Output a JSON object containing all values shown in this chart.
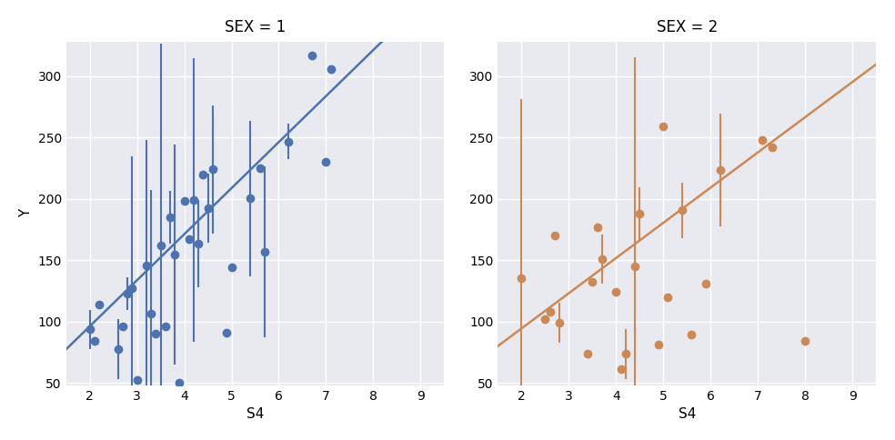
{
  "sex1": {
    "color": "#4C72B0",
    "title": "SEX = 1",
    "xlabel": "S4",
    "ylabel": "Y"
  },
  "sex2": {
    "color": "#CC8855",
    "title": "SEX = 2",
    "xlabel": "S4",
    "ylabel": "Y"
  },
  "xlim": [
    1.5,
    9.5
  ],
  "ylim": [
    48,
    328
  ],
  "xticks": [
    2,
    3,
    4,
    5,
    6,
    7,
    8,
    9
  ],
  "yticks": [
    50,
    100,
    150,
    200,
    250,
    300
  ],
  "background_color": "#E8EAF0",
  "fig_color": "#FFFFFF",
  "marker_size": 6,
  "elinewidth": 1.5,
  "capsize": 0,
  "title_fontsize": 12,
  "label_fontsize": 11,
  "tick_fontsize": 10,
  "grid_color": "#FFFFFF",
  "grid_linewidth": 1.0
}
